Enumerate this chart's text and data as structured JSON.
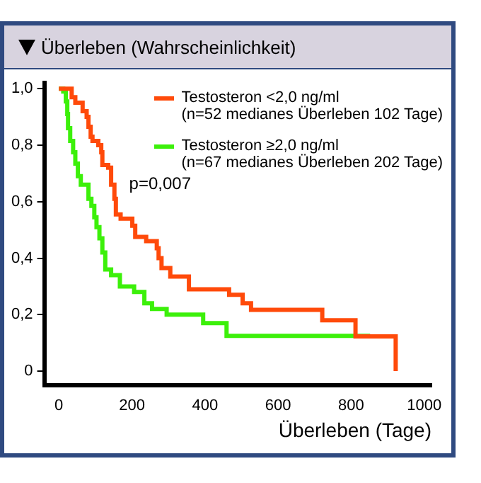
{
  "chart_data": {
    "type": "step",
    "title": "Überleben (Wahrscheinlichkeit)",
    "xlabel": "Überleben (Tage)",
    "xlim": [
      -40,
      1020
    ],
    "xticks": [
      0,
      200,
      400,
      600,
      800,
      1000
    ],
    "ylim": [
      -0.05,
      1.02
    ],
    "yticks": [
      {
        "value": 0,
        "label": "0"
      },
      {
        "value": 0.2,
        "label": "0,2"
      },
      {
        "value": 0.4,
        "label": "0,4"
      },
      {
        "value": 0.6,
        "label": "0,6"
      },
      {
        "value": 0.8,
        "label": "0,8"
      },
      {
        "value": 1,
        "label": "1,0"
      }
    ],
    "grid": false,
    "legend": "top right",
    "marker": "none",
    "line_style": "solid",
    "annotations": [
      "p=0,007"
    ],
    "series": [
      {
        "name": "Testosteron <2,0 ng/ml\n(n=52 medianes Überleben 102 Tage)",
        "color": "#ff4a0a",
        "x": [
          0,
          35,
          45,
          65,
          76,
          81,
          87,
          92,
          108,
          116,
          119,
          135,
          143,
          152,
          156,
          169,
          201,
          209,
          239,
          268,
          273,
          281,
          305,
          356,
          466,
          503,
          526,
          721,
          812,
          922
        ],
        "values": [
          1,
          0.97,
          0.95,
          0.92,
          0.9,
          0.865,
          0.83,
          0.815,
          0.8,
          0.775,
          0.73,
          0.72,
          0.66,
          0.61,
          0.555,
          0.54,
          0.515,
          0.475,
          0.46,
          0.435,
          0.4,
          0.365,
          0.335,
          0.29,
          0.27,
          0.24,
          0.217,
          0.18,
          0.123,
          0
        ]
      },
      {
        "name": "Testosteron ≥2,0 ng/ml\n(n=67 medianes Überleben 202 Tage)",
        "color": "#3cf00a",
        "x": [
          0,
          12,
          19,
          23,
          25,
          31,
          39,
          45,
          52,
          60,
          81,
          89,
          97,
          103,
          111,
          119,
          127,
          143,
          167,
          206,
          234,
          255,
          295,
          395,
          459,
          852
        ],
        "values": [
          1,
          0.99,
          0.955,
          0.91,
          0.86,
          0.815,
          0.775,
          0.735,
          0.69,
          0.66,
          0.61,
          0.585,
          0.545,
          0.51,
          0.47,
          0.42,
          0.36,
          0.34,
          0.3,
          0.28,
          0.24,
          0.22,
          0.2,
          0.17,
          0.125,
          0.125
        ]
      }
    ]
  }
}
